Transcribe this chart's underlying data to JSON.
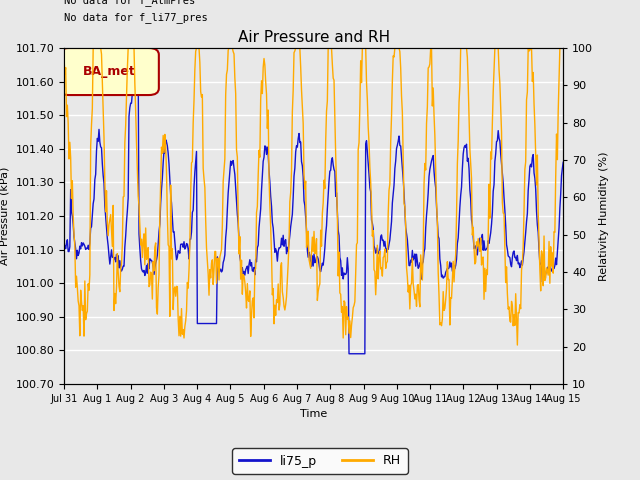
{
  "title": "Air Pressure and RH",
  "xlabel": "Time",
  "ylabel_left": "Air Pressure (kPa)",
  "ylabel_right": "Relativity Humidity (%)",
  "annotation_line1": "No data for f_AtmPres",
  "annotation_line2": "No data for f_li77_pres",
  "badge_text": "BA_met",
  "ylim_left": [
    100.7,
    101.7
  ],
  "ylim_right": [
    10,
    100
  ],
  "yticks_left": [
    100.7,
    100.8,
    100.9,
    101.0,
    101.1,
    101.2,
    101.3,
    101.4,
    101.5,
    101.6,
    101.7
  ],
  "yticks_right": [
    10,
    20,
    30,
    40,
    50,
    60,
    70,
    80,
    90,
    100
  ],
  "xtick_labels": [
    "Jul 31",
    "Aug 1",
    "Aug 2",
    "Aug 3",
    "Aug 4",
    "Aug 5",
    "Aug 6",
    "Aug 7",
    "Aug 8",
    "Aug 9",
    "Aug 10",
    "Aug 11",
    "Aug 12",
    "Aug 13",
    "Aug 14",
    "Aug 15"
  ],
  "line_color_li75": "#1414cc",
  "line_color_rh": "#ffaa00",
  "legend_label_li75": "li75_p",
  "legend_label_rh": "RH",
  "fig_bg_color": "#e8e8e8",
  "plot_bg_color": "#e8e8e8",
  "grid_color": "#ffffff",
  "badge_bg": "#ffffcc",
  "badge_border": "#aa0000",
  "badge_text_color": "#aa0000",
  "title_fontsize": 11,
  "axis_label_fontsize": 8,
  "tick_fontsize": 8,
  "legend_fontsize": 9
}
